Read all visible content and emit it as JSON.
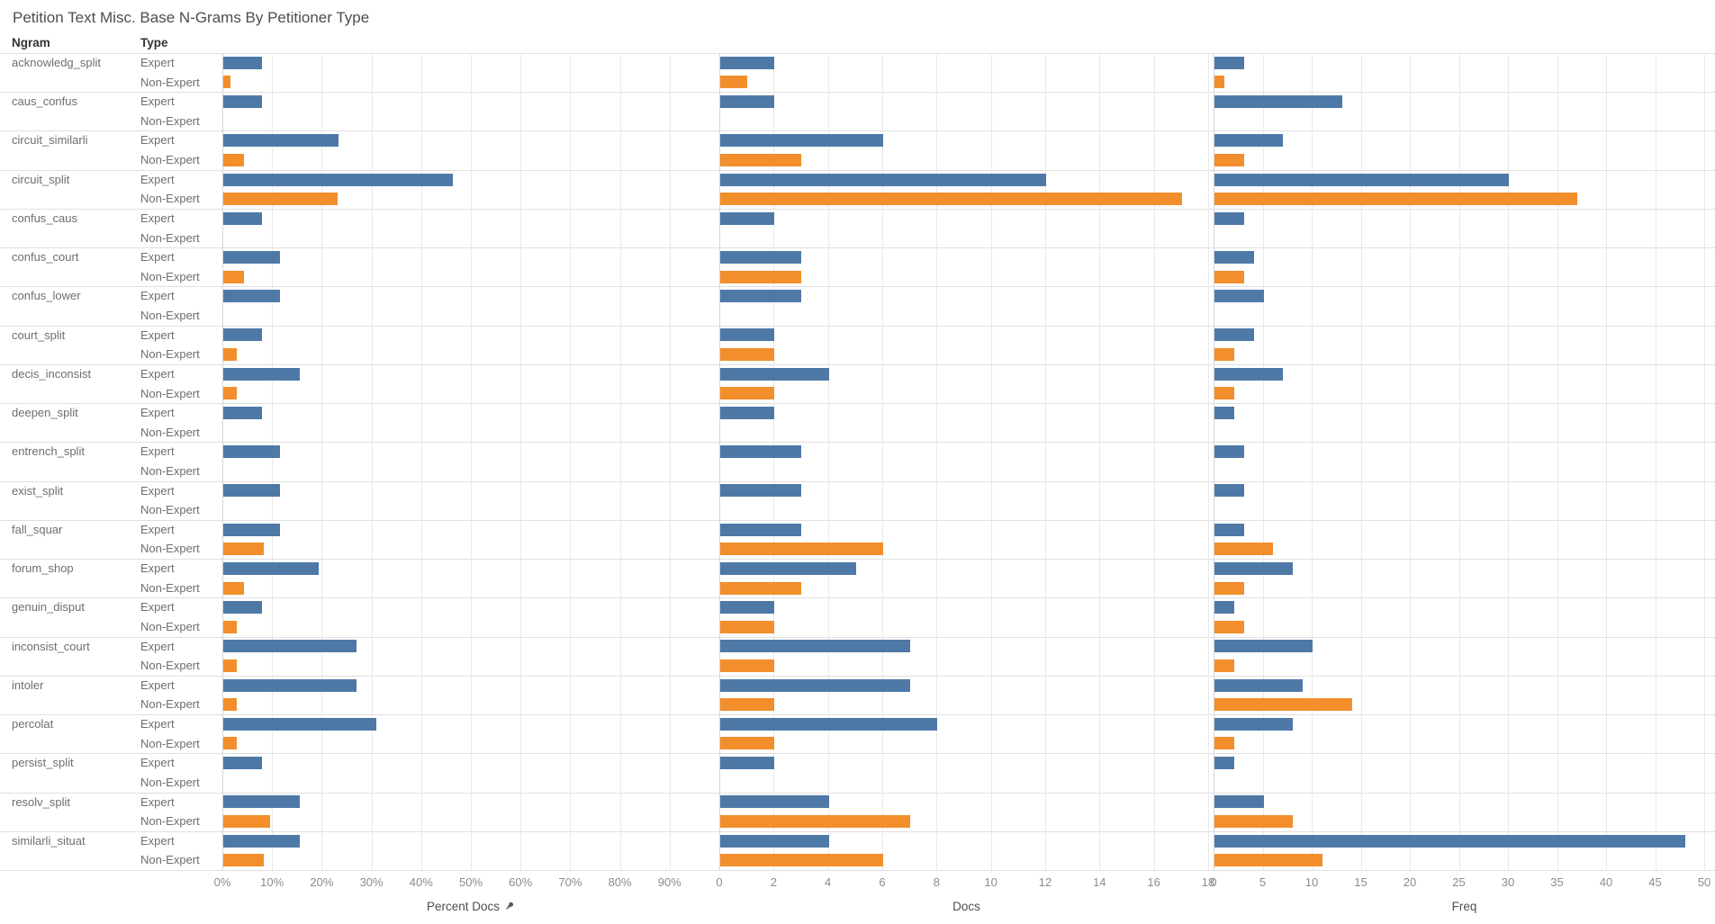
{
  "chart_data": {
    "type": "bar",
    "title": "Petition Text Misc. Base N-Grams By Petitioner Type",
    "row_header": "Ngram",
    "type_header": "Type",
    "legend_position": "none",
    "grid": true,
    "orientation": "horizontal",
    "types": [
      {
        "name": "Expert",
        "color": "#4e79a7"
      },
      {
        "name": "Non-Expert",
        "color": "#f28e2b"
      }
    ],
    "panels": [
      {
        "label": "Percent Docs",
        "pinned": true,
        "axis_max": 100,
        "grid_step": 10,
        "grid_max": 100,
        "tick_values": [
          0,
          10,
          20,
          30,
          40,
          50,
          60,
          70,
          80,
          90
        ],
        "tick_labels": [
          "0%",
          "10%",
          "20%",
          "30%",
          "40%",
          "50%",
          "60%",
          "70%",
          "80%",
          "90%"
        ]
      },
      {
        "label": "Docs",
        "pinned": false,
        "axis_max": 18.2,
        "grid_step": 2,
        "grid_max": 18,
        "tick_values": [
          0,
          2,
          4,
          6,
          8,
          10,
          12,
          14,
          16,
          18
        ],
        "tick_labels": [
          "0",
          "2",
          "4",
          "6",
          "8",
          "10",
          "12",
          "14",
          "16",
          "18"
        ]
      },
      {
        "label": "Freq",
        "pinned": false,
        "axis_max": 51.1,
        "grid_step": 5,
        "grid_max": 50,
        "tick_values": [
          0,
          5,
          10,
          15,
          20,
          25,
          30,
          35,
          40,
          45,
          50
        ],
        "tick_labels": [
          "0",
          "5",
          "10",
          "15",
          "20",
          "25",
          "30",
          "35",
          "40",
          "45",
          "50"
        ]
      }
    ],
    "rows": [
      {
        "ngram": "acknowledg_split",
        "expert": [
          7.7,
          2,
          3
        ],
        "non_expert": [
          1.4,
          1,
          1
        ]
      },
      {
        "ngram": "caus_confus",
        "expert": [
          7.7,
          2,
          13
        ],
        "non_expert": null
      },
      {
        "ngram": "circuit_similarli",
        "expert": [
          23.1,
          6,
          7
        ],
        "non_expert": [
          4.1,
          3,
          3
        ]
      },
      {
        "ngram": "circuit_split",
        "expert": [
          46.2,
          12,
          30
        ],
        "non_expert": [
          23.0,
          17,
          37
        ]
      },
      {
        "ngram": "confus_caus",
        "expert": [
          7.7,
          2,
          3
        ],
        "non_expert": null
      },
      {
        "ngram": "confus_court",
        "expert": [
          11.5,
          3,
          4
        ],
        "non_expert": [
          4.1,
          3,
          3
        ]
      },
      {
        "ngram": "confus_lower",
        "expert": [
          11.5,
          3,
          5
        ],
        "non_expert": null
      },
      {
        "ngram": "court_split",
        "expert": [
          7.7,
          2,
          4
        ],
        "non_expert": [
          2.7,
          2,
          2
        ]
      },
      {
        "ngram": "decis_inconsist",
        "expert": [
          15.4,
          4,
          7
        ],
        "non_expert": [
          2.7,
          2,
          2
        ]
      },
      {
        "ngram": "deepen_split",
        "expert": [
          7.7,
          2,
          2
        ],
        "non_expert": null
      },
      {
        "ngram": "entrench_split",
        "expert": [
          11.5,
          3,
          3
        ],
        "non_expert": null
      },
      {
        "ngram": "exist_split",
        "expert": [
          11.5,
          3,
          3
        ],
        "non_expert": null
      },
      {
        "ngram": "fall_squar",
        "expert": [
          11.5,
          3,
          3
        ],
        "non_expert": [
          8.1,
          6,
          6
        ]
      },
      {
        "ngram": "forum_shop",
        "expert": [
          19.2,
          5,
          8
        ],
        "non_expert": [
          4.1,
          3,
          3
        ]
      },
      {
        "ngram": "genuin_disput",
        "expert": [
          7.7,
          2,
          2
        ],
        "non_expert": [
          2.7,
          2,
          3
        ]
      },
      {
        "ngram": "inconsist_court",
        "expert": [
          26.9,
          7,
          10
        ],
        "non_expert": [
          2.7,
          2,
          2
        ]
      },
      {
        "ngram": "intoler",
        "expert": [
          26.9,
          7,
          9
        ],
        "non_expert": [
          2.7,
          2,
          14
        ]
      },
      {
        "ngram": "percolat",
        "expert": [
          30.8,
          8,
          8
        ],
        "non_expert": [
          2.7,
          2,
          2
        ]
      },
      {
        "ngram": "persist_split",
        "expert": [
          7.7,
          2,
          2
        ],
        "non_expert": null
      },
      {
        "ngram": "resolv_split",
        "expert": [
          15.4,
          4,
          5
        ],
        "non_expert": [
          9.5,
          7,
          8
        ]
      },
      {
        "ngram": "similarli_situat",
        "expert": [
          15.4,
          4,
          48
        ],
        "non_expert": [
          8.1,
          6,
          11
        ]
      }
    ]
  }
}
